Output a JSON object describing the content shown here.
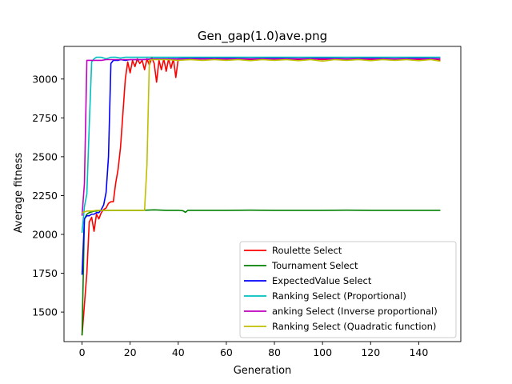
{
  "chart_data": {
    "type": "line",
    "title": "Gen_gap(1.0)ave.png",
    "xlabel": "Generation",
    "ylabel": "Average fitness",
    "xlim": [
      -7.5,
      157.5
    ],
    "ylim": [
      1310,
      3210
    ],
    "xticks": [
      0,
      20,
      40,
      60,
      80,
      100,
      120,
      140
    ],
    "yticks": [
      1500,
      1750,
      2000,
      2250,
      2500,
      2750,
      3000
    ],
    "grid": false,
    "legend_position": "lower right",
    "series": [
      {
        "name": "Roulette Select",
        "color": "#ff0000",
        "points": [
          [
            0,
            1350
          ],
          [
            1,
            1550
          ],
          [
            2,
            1750
          ],
          [
            3,
            2080
          ],
          [
            4,
            2110
          ],
          [
            5,
            2020
          ],
          [
            6,
            2130
          ],
          [
            7,
            2100
          ],
          [
            8,
            2140
          ],
          [
            9,
            2160
          ],
          [
            10,
            2170
          ],
          [
            11,
            2200
          ],
          [
            12,
            2210
          ],
          [
            13,
            2210
          ],
          [
            14,
            2330
          ],
          [
            15,
            2420
          ],
          [
            16,
            2560
          ],
          [
            17,
            2780
          ],
          [
            18,
            3000
          ],
          [
            19,
            3110
          ],
          [
            20,
            3040
          ],
          [
            21,
            3120
          ],
          [
            22,
            3080
          ],
          [
            23,
            3130
          ],
          [
            24,
            3100
          ],
          [
            25,
            3120
          ],
          [
            26,
            3060
          ],
          [
            27,
            3130
          ],
          [
            28,
            3090
          ],
          [
            29,
            3140
          ],
          [
            30,
            3100
          ],
          [
            31,
            2980
          ],
          [
            32,
            3120
          ],
          [
            33,
            3060
          ],
          [
            34,
            3130
          ],
          [
            35,
            3050
          ],
          [
            36,
            3130
          ],
          [
            37,
            3070
          ],
          [
            38,
            3130
          ],
          [
            39,
            3010
          ],
          [
            40,
            3130
          ],
          [
            42,
            3130
          ],
          [
            44,
            3125
          ],
          [
            46,
            3130
          ],
          [
            48,
            3125
          ],
          [
            50,
            3130
          ],
          [
            55,
            3130
          ],
          [
            60,
            3125
          ],
          [
            65,
            3130
          ],
          [
            70,
            3125
          ],
          [
            75,
            3130
          ],
          [
            80,
            3125
          ],
          [
            85,
            3130
          ],
          [
            90,
            3125
          ],
          [
            95,
            3130
          ],
          [
            100,
            3125
          ],
          [
            105,
            3130
          ],
          [
            110,
            3125
          ],
          [
            115,
            3130
          ],
          [
            120,
            3125
          ],
          [
            125,
            3130
          ],
          [
            130,
            3125
          ],
          [
            135,
            3130
          ],
          [
            140,
            3125
          ],
          [
            145,
            3130
          ],
          [
            149,
            3120
          ]
        ]
      },
      {
        "name": "Tournament Select",
        "color": "#008000",
        "points": [
          [
            0,
            1350
          ],
          [
            1,
            2100
          ],
          [
            2,
            2130
          ],
          [
            3,
            2140
          ],
          [
            4,
            2145
          ],
          [
            5,
            2150
          ],
          [
            6,
            2150
          ],
          [
            8,
            2155
          ],
          [
            10,
            2155
          ],
          [
            15,
            2155
          ],
          [
            20,
            2155
          ],
          [
            25,
            2155
          ],
          [
            30,
            2158
          ],
          [
            35,
            2155
          ],
          [
            40,
            2155
          ],
          [
            42,
            2152
          ],
          [
            43,
            2142
          ],
          [
            44,
            2155
          ],
          [
            50,
            2155
          ],
          [
            60,
            2155
          ],
          [
            70,
            2156
          ],
          [
            80,
            2155
          ],
          [
            90,
            2155
          ],
          [
            100,
            2155
          ],
          [
            110,
            2156
          ],
          [
            120,
            2155
          ],
          [
            130,
            2155
          ],
          [
            140,
            2155
          ],
          [
            149,
            2155
          ]
        ]
      },
      {
        "name": "ExpectedValue Select",
        "color": "#0000ff",
        "points": [
          [
            0,
            1740
          ],
          [
            1,
            2100
          ],
          [
            2,
            2120
          ],
          [
            3,
            2120
          ],
          [
            4,
            2130
          ],
          [
            5,
            2130
          ],
          [
            6,
            2140
          ],
          [
            7,
            2140
          ],
          [
            8,
            2160
          ],
          [
            9,
            2190
          ],
          [
            10,
            2270
          ],
          [
            11,
            2500
          ],
          [
            12,
            3100
          ],
          [
            13,
            3120
          ],
          [
            14,
            3120
          ],
          [
            15,
            3120
          ],
          [
            16,
            3125
          ],
          [
            18,
            3120
          ],
          [
            20,
            3125
          ],
          [
            25,
            3125
          ],
          [
            30,
            3130
          ],
          [
            35,
            3130
          ],
          [
            40,
            3130
          ],
          [
            50,
            3135
          ],
          [
            60,
            3135
          ],
          [
            70,
            3130
          ],
          [
            80,
            3135
          ],
          [
            90,
            3130
          ],
          [
            100,
            3135
          ],
          [
            110,
            3130
          ],
          [
            120,
            3135
          ],
          [
            130,
            3130
          ],
          [
            140,
            3135
          ],
          [
            149,
            3130
          ]
        ]
      },
      {
        "name": "Ranking Select (Proportional)",
        "color": "#00bfbf",
        "points": [
          [
            0,
            2010
          ],
          [
            1,
            2180
          ],
          [
            2,
            2260
          ],
          [
            3,
            2700
          ],
          [
            4,
            3110
          ],
          [
            5,
            3130
          ],
          [
            6,
            3140
          ],
          [
            8,
            3140
          ],
          [
            10,
            3130
          ],
          [
            12,
            3140
          ],
          [
            14,
            3140
          ],
          [
            16,
            3135
          ],
          [
            18,
            3140
          ],
          [
            20,
            3140
          ],
          [
            25,
            3140
          ],
          [
            30,
            3140
          ],
          [
            40,
            3140
          ],
          [
            50,
            3140
          ],
          [
            60,
            3140
          ],
          [
            70,
            3140
          ],
          [
            80,
            3140
          ],
          [
            90,
            3140
          ],
          [
            100,
            3140
          ],
          [
            110,
            3140
          ],
          [
            120,
            3140
          ],
          [
            130,
            3140
          ],
          [
            140,
            3140
          ],
          [
            149,
            3140
          ]
        ]
      },
      {
        "name": "anking Select (Inverse proportional)",
        "color": "#bf00bf",
        "points": [
          [
            0,
            2120
          ],
          [
            1,
            2330
          ],
          [
            2,
            3120
          ],
          [
            3,
            3120
          ],
          [
            4,
            3120
          ],
          [
            5,
            3120
          ],
          [
            6,
            3120
          ],
          [
            8,
            3120
          ],
          [
            10,
            3125
          ],
          [
            15,
            3125
          ],
          [
            20,
            3125
          ],
          [
            25,
            3125
          ],
          [
            30,
            3128
          ],
          [
            40,
            3128
          ],
          [
            50,
            3130
          ],
          [
            60,
            3130
          ],
          [
            70,
            3130
          ],
          [
            80,
            3130
          ],
          [
            90,
            3130
          ],
          [
            100,
            3130
          ],
          [
            110,
            3130
          ],
          [
            120,
            3130
          ],
          [
            130,
            3130
          ],
          [
            140,
            3130
          ],
          [
            149,
            3130
          ]
        ]
      },
      {
        "name": "Ranking Select (Quadratic function)",
        "color": "#bfbf00",
        "points": [
          [
            0,
            2140
          ],
          [
            1,
            2145
          ],
          [
            2,
            2150
          ],
          [
            4,
            2150
          ],
          [
            6,
            2155
          ],
          [
            8,
            2155
          ],
          [
            10,
            2155
          ],
          [
            15,
            2155
          ],
          [
            20,
            2155
          ],
          [
            25,
            2155
          ],
          [
            26,
            2155
          ],
          [
            27,
            2450
          ],
          [
            28,
            3120
          ],
          [
            29,
            3125
          ],
          [
            30,
            3125
          ],
          [
            35,
            3125
          ],
          [
            40,
            3120
          ],
          [
            45,
            3125
          ],
          [
            50,
            3120
          ],
          [
            55,
            3125
          ],
          [
            60,
            3120
          ],
          [
            65,
            3125
          ],
          [
            70,
            3118
          ],
          [
            75,
            3125
          ],
          [
            80,
            3120
          ],
          [
            85,
            3125
          ],
          [
            90,
            3118
          ],
          [
            95,
            3125
          ],
          [
            100,
            3115
          ],
          [
            105,
            3125
          ],
          [
            110,
            3120
          ],
          [
            115,
            3125
          ],
          [
            120,
            3118
          ],
          [
            125,
            3125
          ],
          [
            130,
            3120
          ],
          [
            135,
            3125
          ],
          [
            140,
            3118
          ],
          [
            145,
            3125
          ],
          [
            149,
            3115
          ]
        ]
      }
    ]
  }
}
